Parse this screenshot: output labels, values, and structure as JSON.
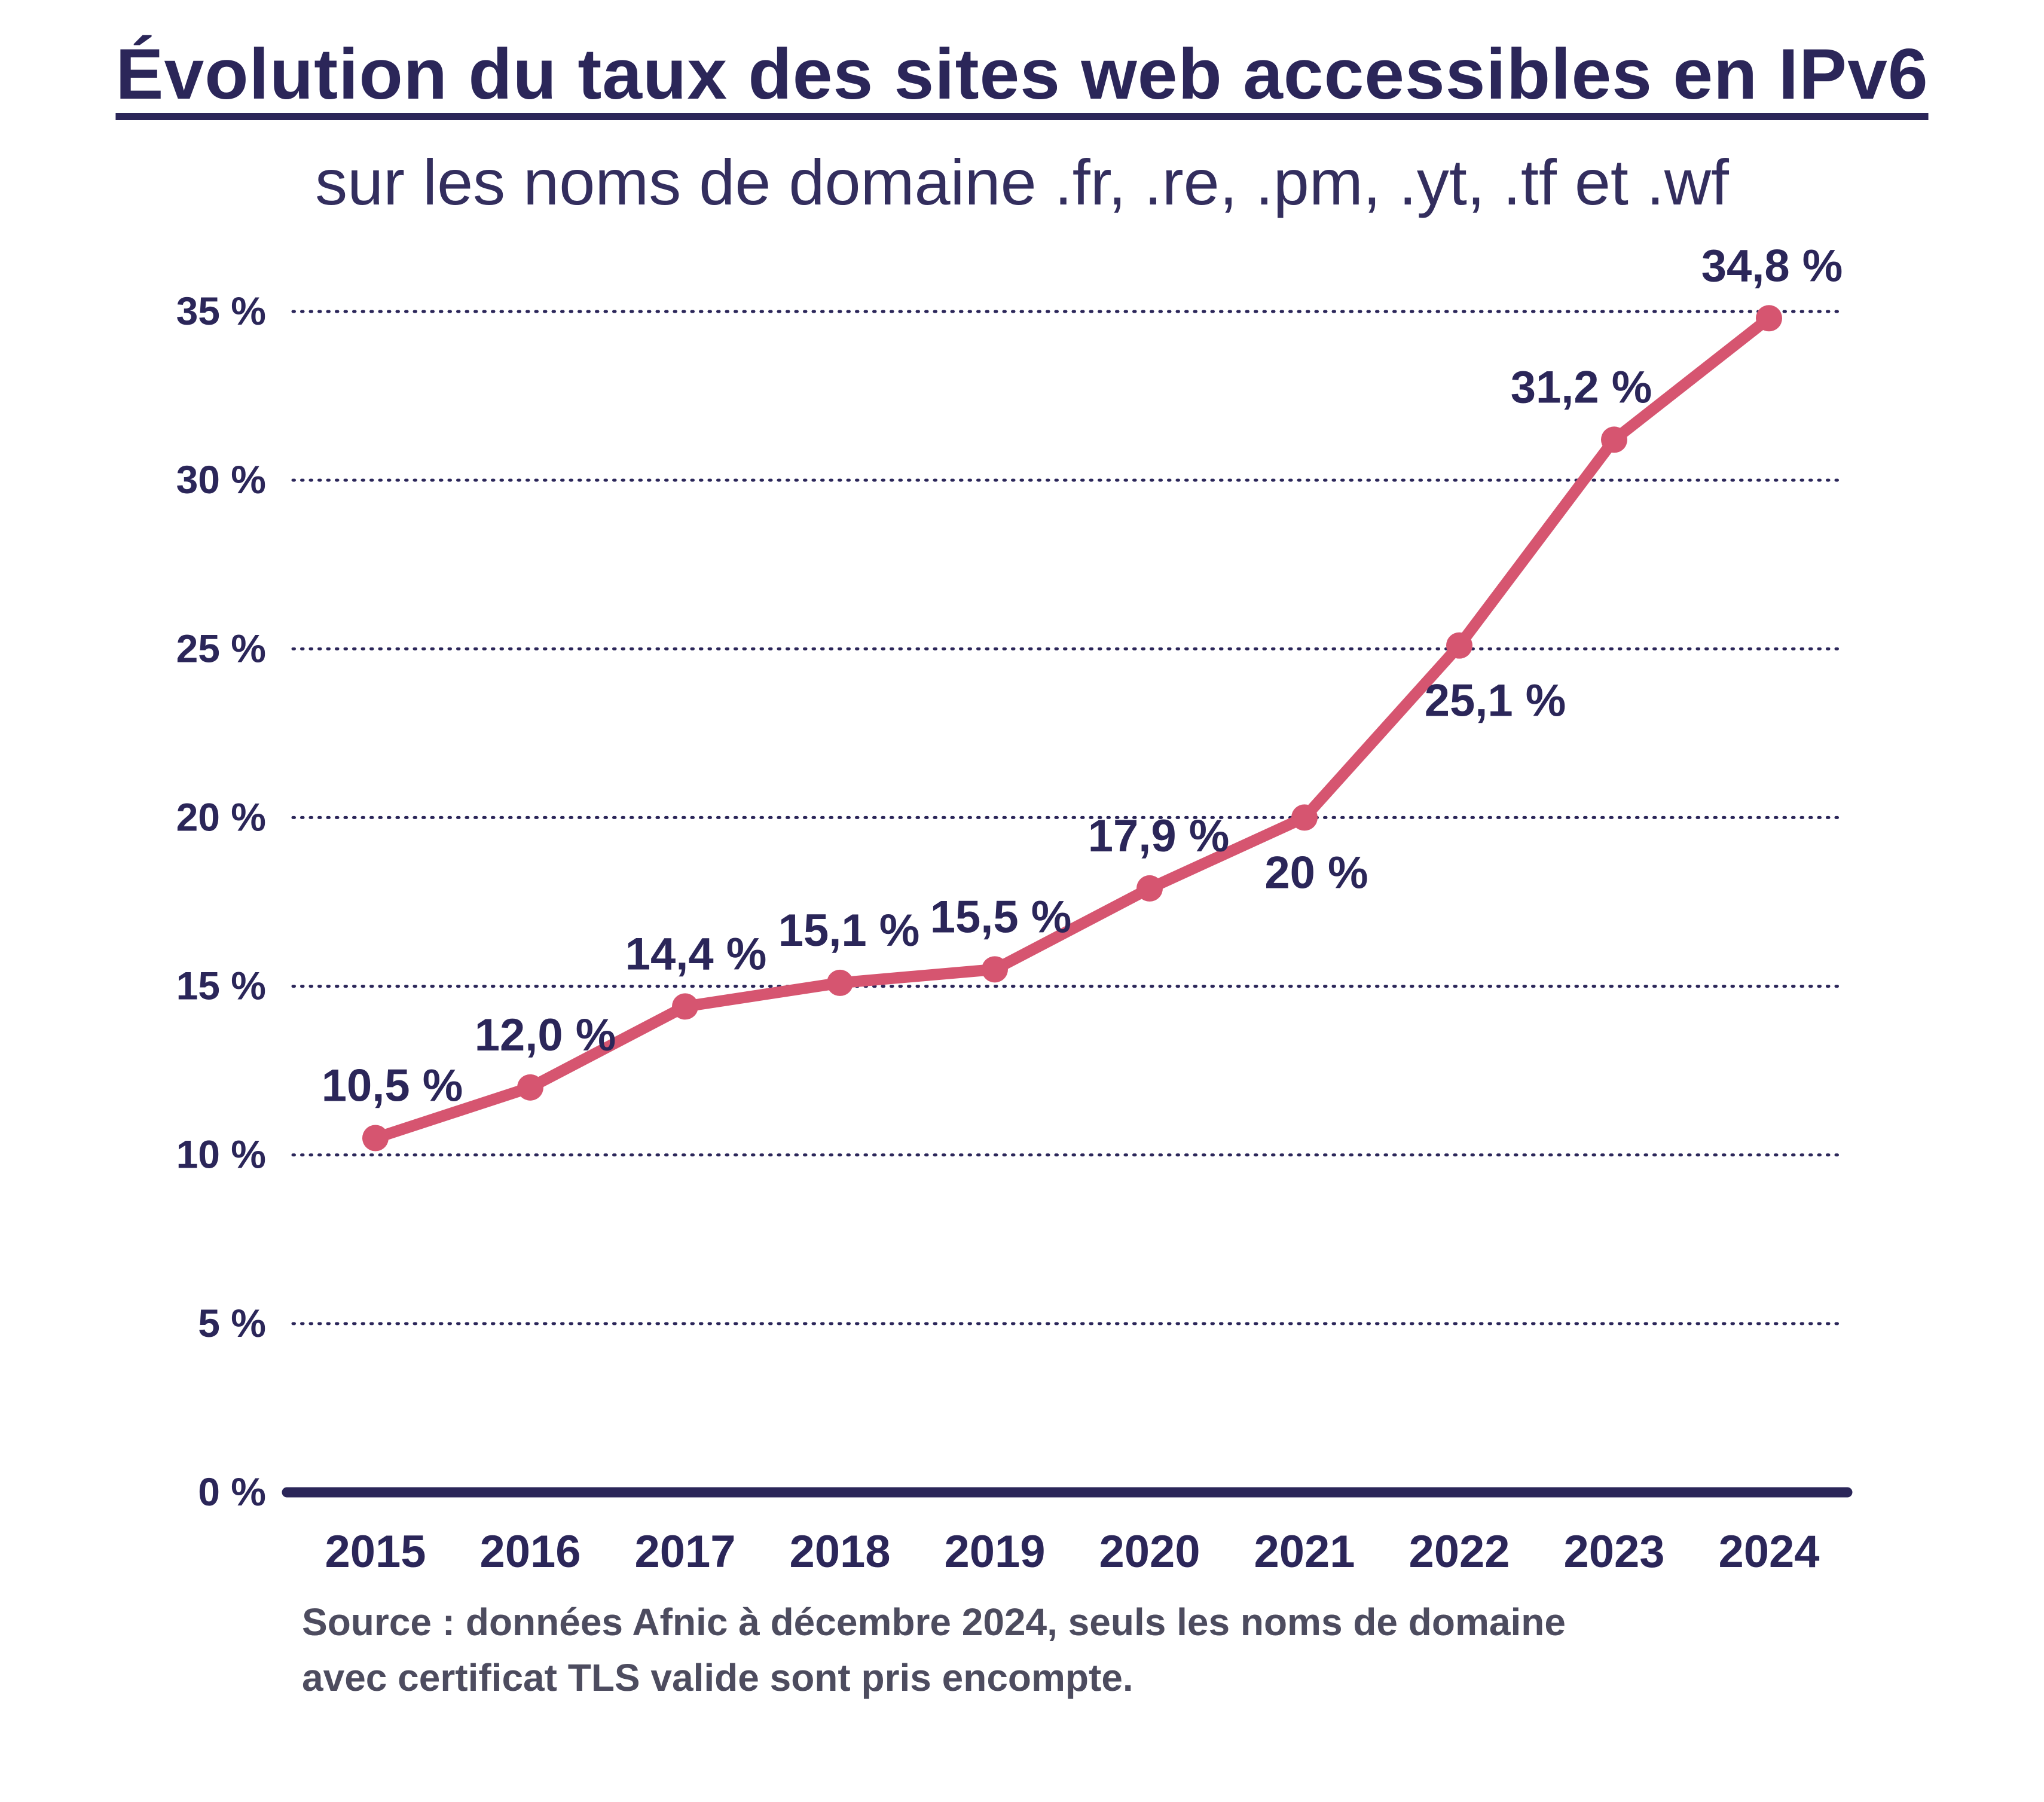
{
  "colors": {
    "text_navy": "#2b2659",
    "line_pink": "#d65570",
    "subtitle_navy": "#332e5e",
    "source_gray": "#4d4c5f",
    "background": "#ffffff"
  },
  "source": {
    "line1": "Source : données Afnic à décembre 2024, seuls les noms de domaine",
    "line2": "avec certificat TLS valide sont pris encompte."
  },
  "chart_data": {
    "type": "line",
    "title": "Évolution du taux des sites web accessibles en IPv6",
    "subtitle": "sur les noms de domaine .fr, .re, .pm, .yt, .tf et .wf",
    "categories": [
      "2015",
      "2016",
      "2017",
      "2018",
      "2019",
      "2020",
      "2021",
      "2022",
      "2023",
      "2024"
    ],
    "values": [
      10.5,
      12.0,
      14.4,
      15.1,
      15.5,
      17.9,
      20,
      25.1,
      31.2,
      34.8
    ],
    "point_labels": [
      "10,5 %",
      "12,0 %",
      "14,4 %",
      "15,1 %",
      "15,5 %",
      "17,9 %",
      "20 %",
      "25,1 %",
      "31,2 %",
      "34,8 %"
    ],
    "label_placements": [
      "above",
      "above",
      "above",
      "above",
      "above",
      "above",
      "below",
      "below",
      "above",
      "above"
    ],
    "label_dx": [
      28,
      25,
      18,
      15,
      10,
      15,
      20,
      60,
      -55,
      5
    ],
    "xlabel": "",
    "ylabel": "",
    "ylim": [
      0,
      35
    ],
    "ytick_step": 5,
    "ytick_labels": [
      "0 %",
      "5 %",
      "10 %",
      "15 %",
      "20 %",
      "25 %",
      "30 %",
      "35 %"
    ],
    "grid": "dotted-horizontal",
    "legend": "none",
    "line_color": "#d65570",
    "marker": "circle"
  }
}
